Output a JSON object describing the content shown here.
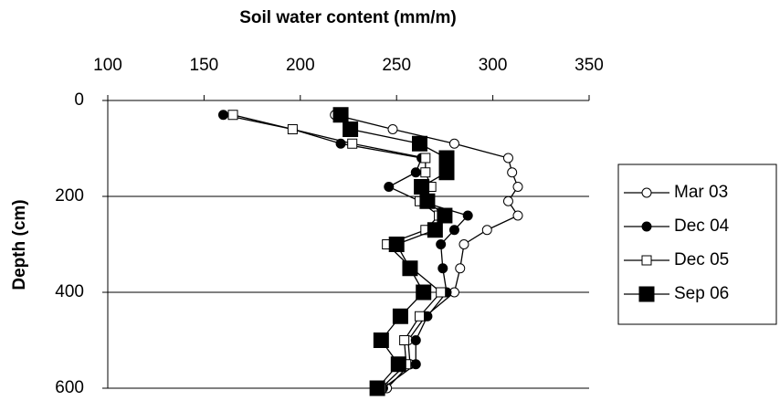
{
  "chart_data": {
    "type": "line",
    "title": "Soil water content (mm/m)",
    "y_label": "Depth (cm)",
    "x_axis_position": "top",
    "y_inverted": true,
    "xlim": [
      100,
      350
    ],
    "xticks": [
      100,
      150,
      200,
      250,
      300,
      350
    ],
    "ylim": [
      0,
      600
    ],
    "yticks": [
      0,
      200,
      400,
      600
    ],
    "grid": true,
    "legend": "right",
    "y": [
      30,
      60,
      90,
      120,
      150,
      180,
      210,
      240,
      270,
      300,
      350,
      400,
      450,
      500,
      550,
      600
    ],
    "series": [
      {
        "name": "Mar 03",
        "color": "#000000",
        "marker": "circle-open",
        "values": [
          218,
          248,
          280,
          308,
          310,
          313,
          308,
          313,
          297,
          285,
          283,
          280,
          265,
          256,
          257,
          245
        ]
      },
      {
        "name": "Dec 04",
        "color": "#000000",
        "marker": "circle-filled",
        "values": [
          160,
          196,
          221,
          263,
          260,
          246,
          262,
          287,
          280,
          273,
          274,
          276,
          266,
          260,
          260,
          243
        ]
      },
      {
        "name": "Dec 05",
        "color": "#000000",
        "marker": "square-open",
        "values": [
          165,
          196,
          227,
          265,
          265,
          268,
          262,
          272,
          265,
          245,
          258,
          273,
          262,
          254,
          255,
          242
        ]
      },
      {
        "name": "Sep 06",
        "color": "#000000",
        "marker": "square-filled",
        "values": [
          221,
          226,
          262,
          276,
          276,
          263,
          266,
          275,
          270,
          250,
          257,
          264,
          252,
          242,
          251,
          240
        ]
      }
    ]
  }
}
